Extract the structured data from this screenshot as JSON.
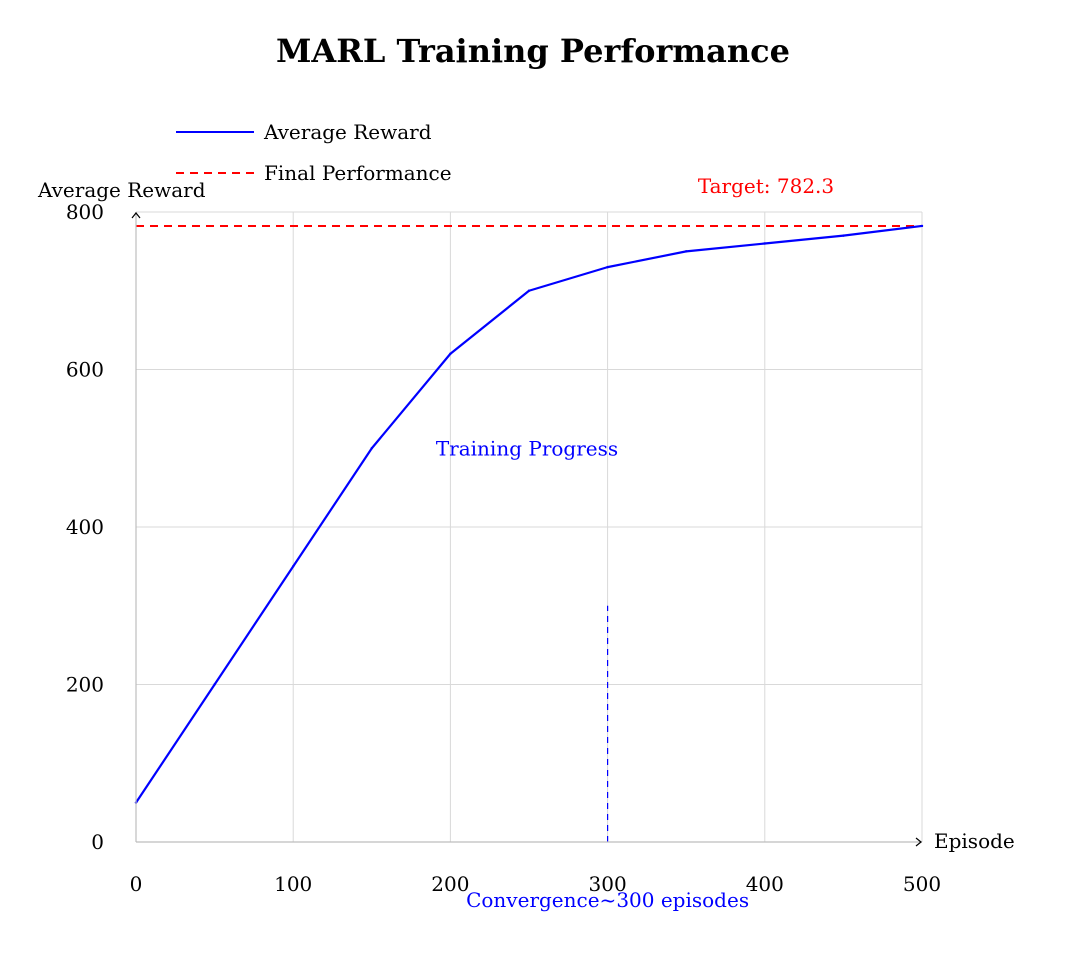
{
  "chart_data": {
    "type": "line",
    "title": "MARL Training Performance",
    "xlabel": "Episode",
    "ylabel": "Average Reward",
    "xlim": [
      0,
      500
    ],
    "ylim": [
      0,
      800
    ],
    "x_ticks": [
      0,
      100,
      200,
      300,
      400,
      500
    ],
    "y_ticks": [
      0,
      200,
      400,
      600,
      800
    ],
    "grid": true,
    "legend_position": "top-left",
    "series": [
      {
        "name": "Average Reward",
        "color": "#0000ff",
        "style": "solid",
        "x": [
          0,
          50,
          100,
          150,
          200,
          250,
          300,
          350,
          400,
          450,
          500
        ],
        "y": [
          50,
          200,
          350,
          500,
          620,
          700,
          730,
          750,
          760,
          770,
          782.3
        ]
      }
    ],
    "reference_lines": [
      {
        "name": "Final Performance",
        "orientation": "horizontal",
        "value": 782.3,
        "color": "#ff0000",
        "style": "dashed",
        "label": "Target: 782.3"
      },
      {
        "orientation": "vertical",
        "value": 300,
        "y_range": [
          0,
          300
        ],
        "color": "#0000ff",
        "style": "dashed",
        "label": "Convergence~300 episodes"
      }
    ],
    "annotations": [
      {
        "text": "Training Progress",
        "x": 250,
        "y": 500,
        "color": "#0000ff"
      }
    ]
  }
}
